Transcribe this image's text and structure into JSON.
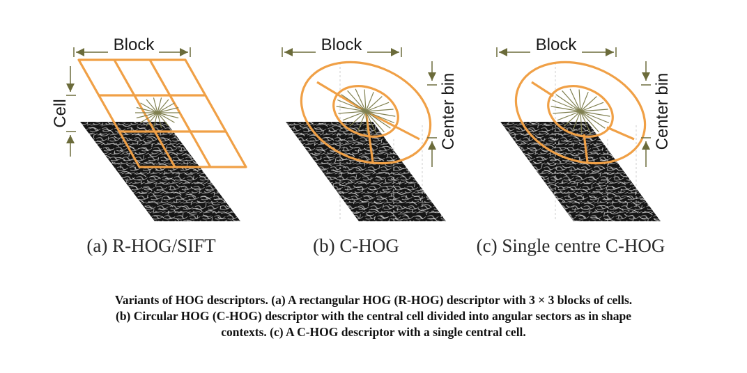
{
  "colors": {
    "orange": "#f0a046",
    "arrow": "#6b6b3a",
    "spokes": "#808050",
    "image_dark": "#111111"
  },
  "labels": {
    "block": "Block",
    "cell": "Cell",
    "center_bin": "Center bin"
  },
  "panels": [
    {
      "id": "a",
      "caption": "(a) R-HOG/SIFT"
    },
    {
      "id": "b",
      "caption": "(b) C-HOG"
    },
    {
      "id": "c",
      "caption": "(c) Single centre C-HOG"
    }
  ],
  "caption": {
    "line1": "Variants of HOG descriptors. (a) A rectangular HOG (R-HOG) descriptor with 3 × 3 blocks of cells.",
    "line2": "(b) Circular HOG (C-HOG) descriptor with the central cell divided into angular sectors as in shape",
    "line3": "contexts. (c) A C-HOG descriptor with a single central cell."
  }
}
